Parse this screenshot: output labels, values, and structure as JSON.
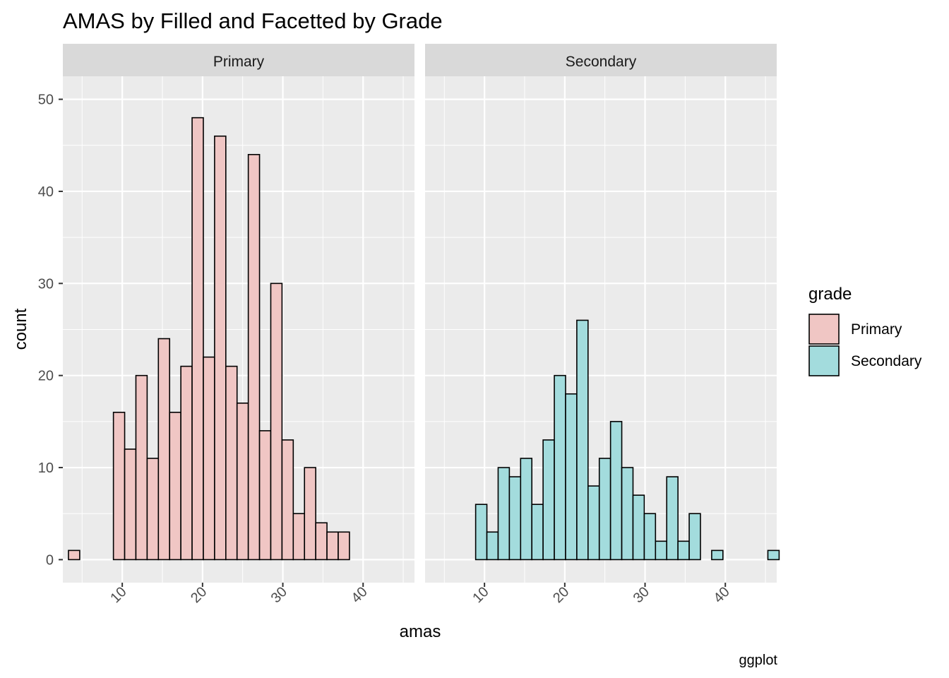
{
  "chart_data": {
    "type": "bar",
    "title": "AMAS by Filled and Facetted by Grade",
    "xlabel": "amas",
    "ylabel": "count",
    "caption": "ggplot",
    "xlim": [
      2.6,
      46.4
    ],
    "ylim": [
      -2.5,
      52.5
    ],
    "x_ticks": [
      10,
      20,
      30,
      40
    ],
    "y_ticks": [
      0,
      10,
      20,
      30,
      40,
      50
    ],
    "bin_width": 1.4,
    "bin_start": 3.3,
    "grid": true,
    "legend": {
      "title": "grade",
      "position": "right",
      "entries": [
        "Primary",
        "Secondary"
      ]
    },
    "colors": {
      "Primary": "#f0c6c4",
      "Secondary": "#a3dcdd",
      "panel": "#ebebeb",
      "strip": "#d9d9d9",
      "outline": "#000000"
    },
    "facets": [
      {
        "name": "Primary",
        "values": [
          1,
          0,
          0,
          0,
          16,
          12,
          20,
          11,
          24,
          16,
          21,
          48,
          22,
          46,
          21,
          17,
          44,
          14,
          30,
          13,
          5,
          10,
          4,
          3,
          3,
          0,
          0,
          0,
          0,
          0,
          0
        ]
      },
      {
        "name": "Secondary",
        "values": [
          0,
          0,
          0,
          0,
          6,
          3,
          10,
          9,
          11,
          6,
          13,
          20,
          18,
          26,
          8,
          11,
          15,
          10,
          7,
          5,
          2,
          9,
          2,
          5,
          0,
          1,
          0,
          0,
          0,
          0,
          1
        ]
      }
    ]
  }
}
